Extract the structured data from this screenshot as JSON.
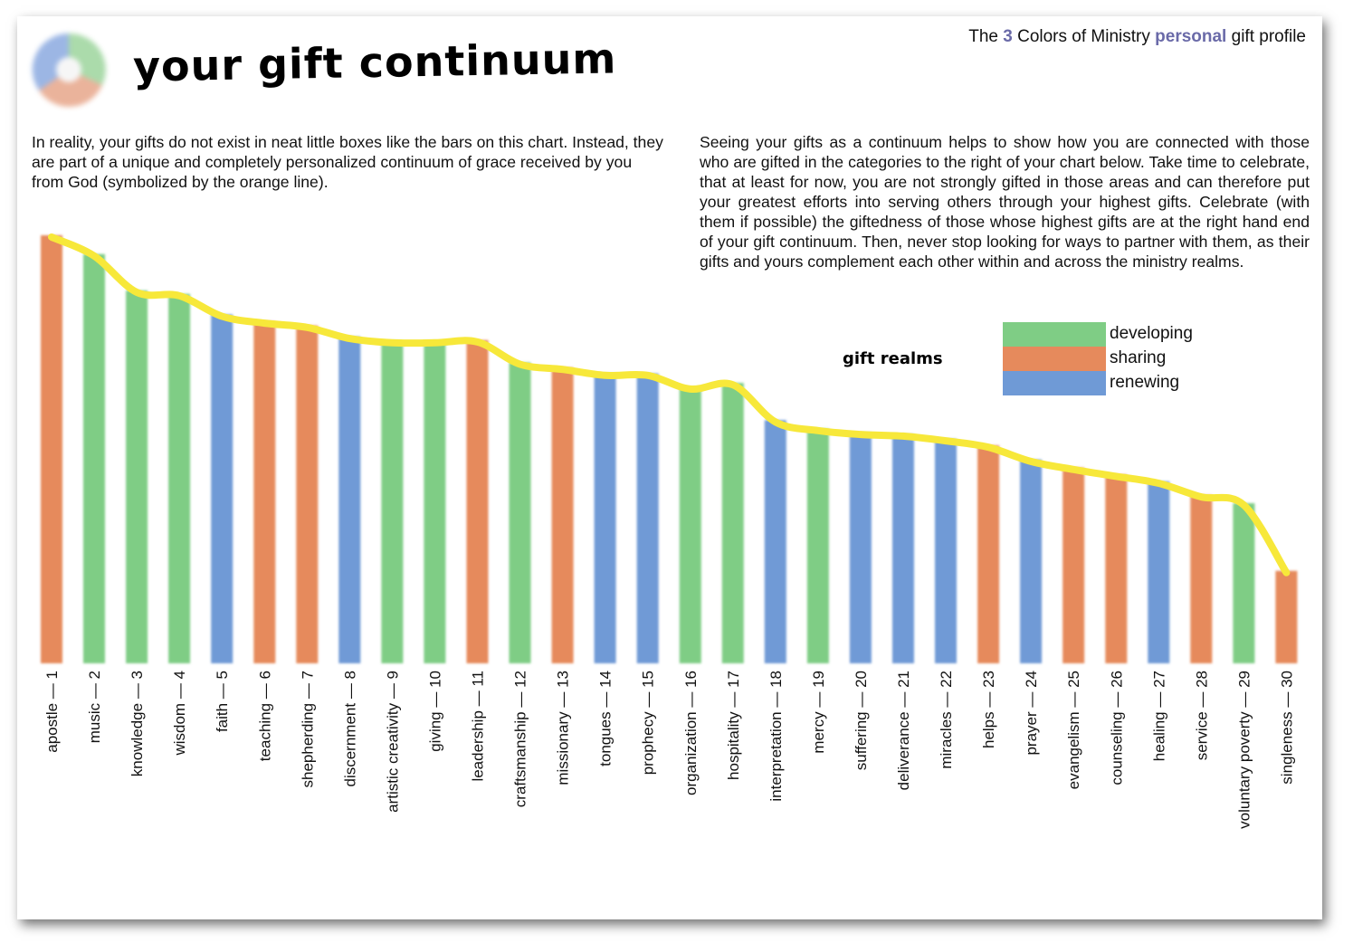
{
  "header": {
    "prefix": "The",
    "number": "3",
    "middle": "Colors of Ministry",
    "personal": "personal",
    "suffix": "gift profile"
  },
  "title": "your gift continuum",
  "paragraph_left": "In reality, your gifts do not exist in neat little boxes like the bars on this chart. Instead, they are part of a unique and completely personalized continuum of grace received by you from God (symbolized by the orange line).",
  "paragraph_right": "Seeing your gifts as a continuum helps to show how you are connected with those who are gifted in the categories to the right of your chart below. Take time to celebrate, that at least for now, you are not strongly gifted in those areas and can therefore put your greatest efforts into serving others through your highest gifts. Celebrate (with them if possible) the giftedness of those whose highest gifts are at the right hand end of your gift continuum. Then, never stop looking for ways to partner with them, as their gifts and yours complement each other within and across the ministry realms.",
  "legend": {
    "title": "gift realms",
    "items": [
      {
        "label": "developing",
        "color": "#7fcd85"
      },
      {
        "label": "sharing",
        "color": "#e68a5c"
      },
      {
        "label": "renewing",
        "color": "#6f9ad6"
      }
    ]
  },
  "colors": {
    "continuum_line": "#f7e83a",
    "header_accent": "#6a6aa8"
  },
  "chart_data": {
    "type": "bar",
    "categories": [
      "apostle — 1",
      "music — 2",
      "knowledge — 3",
      "wisdom — 4",
      "faith — 5",
      "teaching — 6",
      "shepherding — 7",
      "discernment — 8",
      "artistic creativity — 9",
      "giving — 10",
      "leadership — 11",
      "craftsmanship — 12",
      "missionary — 13",
      "tongues — 14",
      "prophecy — 15",
      "organization — 16",
      "hospitality — 17",
      "interpretation — 18",
      "mercy — 19",
      "suffering — 20",
      "deliverance — 21",
      "miracles — 22",
      "helps — 23",
      "prayer — 24",
      "evangelism — 25",
      "counseling — 26",
      "healing — 27",
      "service — 28",
      "voluntary poverty — 29",
      "singleness — 30"
    ],
    "realms": [
      "sharing",
      "developing",
      "developing",
      "developing",
      "renewing",
      "sharing",
      "sharing",
      "renewing",
      "developing",
      "developing",
      "sharing",
      "developing",
      "sharing",
      "renewing",
      "renewing",
      "developing",
      "developing",
      "renewing",
      "developing",
      "renewing",
      "renewing",
      "renewing",
      "sharing",
      "renewing",
      "sharing",
      "sharing",
      "renewing",
      "sharing",
      "developing",
      "sharing"
    ],
    "values": [
      100,
      95.6,
      87.1,
      86.3,
      81.5,
      79.9,
      78.9,
      76.3,
      75.3,
      75.3,
      75.5,
      70.3,
      69.1,
      67.7,
      67.7,
      64.5,
      65.5,
      56.8,
      54.8,
      53.9,
      53.5,
      52.4,
      50.9,
      47.6,
      45.7,
      44.1,
      42.5,
      39.3,
      37.4,
      21.6
    ],
    "ylim": [
      0,
      100
    ],
    "series": [
      {
        "values": [
          100,
          95.6,
          87.1,
          86.3,
          81.5,
          79.9,
          78.9,
          76.3,
          75.3,
          75.3,
          75.5,
          70.3,
          69.1,
          67.7,
          67.7,
          64.5,
          65.5,
          56.8,
          54.8,
          53.9,
          53.5,
          52.4,
          50.9,
          47.6,
          45.7,
          44.1,
          42.5,
          39.3,
          37.4,
          21.6
        ]
      }
    ],
    "grid": false,
    "legend_position": "right"
  }
}
